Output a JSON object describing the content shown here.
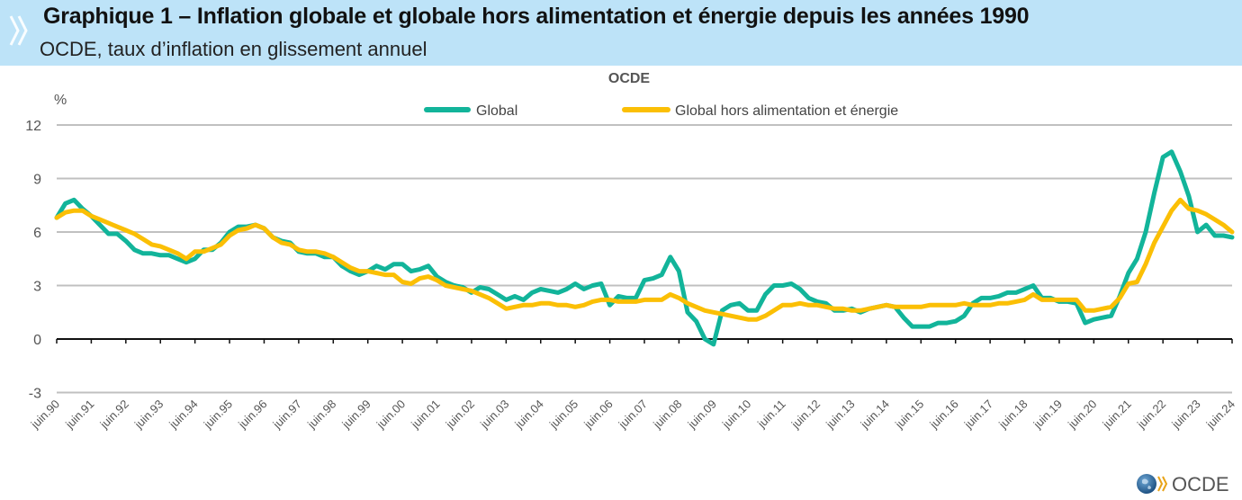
{
  "header": {
    "title": "Graphique 1 – Inflation globale et globale hors alimentation et énergie depuis les années 1990",
    "subtitle": "OCDE, taux d’inflation en glissement annuel",
    "icon": "double-chevron-icon"
  },
  "logo": {
    "text": "OCDE",
    "icon": "globe-icon"
  },
  "chart_data": {
    "type": "line",
    "title": "OCDE",
    "ylabel": "%",
    "xlabel": "",
    "ylim": [
      -3,
      12
    ],
    "yticks": [
      -3,
      0,
      3,
      6,
      9,
      12
    ],
    "grid": true,
    "legend": "top-center",
    "x_start": 1990.5,
    "x_end": 2024.5,
    "x_tick_labels": [
      "juin.90",
      "juin.91",
      "juin.92",
      "juin.93",
      "juin.94",
      "juin.95",
      "juin.96",
      "juin.97",
      "juin.98",
      "juin.99",
      "juin.00",
      "juin.01",
      "juin.02",
      "juin.03",
      "juin.04",
      "juin.05",
      "juin.06",
      "juin.07",
      "juin.08",
      "juin.09",
      "juin.10",
      "juin.11",
      "juin.12",
      "juin.13",
      "juin.14",
      "juin.15",
      "juin.16",
      "juin.17",
      "juin.18",
      "juin.19",
      "juin.20",
      "juin.21",
      "juin.22",
      "juin.23",
      "juin.24"
    ],
    "x": [
      1990.5,
      1990.75,
      1991.0,
      1991.25,
      1991.5,
      1991.75,
      1992.0,
      1992.25,
      1992.5,
      1992.75,
      1993.0,
      1993.25,
      1993.5,
      1993.75,
      1994.0,
      1994.25,
      1994.5,
      1994.75,
      1995.0,
      1995.25,
      1995.5,
      1995.75,
      1996.0,
      1996.25,
      1996.5,
      1996.75,
      1997.0,
      1997.25,
      1997.5,
      1997.75,
      1998.0,
      1998.25,
      1998.5,
      1998.75,
      1999.0,
      1999.25,
      1999.5,
      1999.75,
      2000.0,
      2000.25,
      2000.5,
      2000.75,
      2001.0,
      2001.25,
      2001.5,
      2001.75,
      2002.0,
      2002.25,
      2002.5,
      2002.75,
      2003.0,
      2003.25,
      2003.5,
      2003.75,
      2004.0,
      2004.25,
      2004.5,
      2004.75,
      2005.0,
      2005.25,
      2005.5,
      2005.75,
      2006.0,
      2006.25,
      2006.5,
      2006.75,
      2007.0,
      2007.25,
      2007.5,
      2007.75,
      2008.0,
      2008.25,
      2008.5,
      2008.75,
      2009.0,
      2009.25,
      2009.5,
      2009.75,
      2010.0,
      2010.25,
      2010.5,
      2010.75,
      2011.0,
      2011.25,
      2011.5,
      2011.75,
      2012.0,
      2012.25,
      2012.5,
      2012.75,
      2013.0,
      2013.25,
      2013.5,
      2013.75,
      2014.0,
      2014.25,
      2014.5,
      2014.75,
      2015.0,
      2015.25,
      2015.5,
      2015.75,
      2016.0,
      2016.25,
      2016.5,
      2016.75,
      2017.0,
      2017.25,
      2017.5,
      2017.75,
      2018.0,
      2018.25,
      2018.5,
      2018.75,
      2019.0,
      2019.25,
      2019.5,
      2019.75,
      2020.0,
      2020.25,
      2020.5,
      2020.75,
      2021.0,
      2021.25,
      2021.5,
      2021.75,
      2022.0,
      2022.25,
      2022.5,
      2022.75,
      2023.0,
      2023.25,
      2023.5,
      2023.75,
      2024.0,
      2024.25,
      2024.5
    ],
    "series": [
      {
        "name": "Global",
        "color": "#12b49a",
        "values": [
          6.8,
          7.6,
          7.8,
          7.3,
          6.9,
          6.4,
          5.9,
          5.9,
          5.5,
          5.0,
          4.8,
          4.8,
          4.7,
          4.7,
          4.5,
          4.3,
          4.5,
          5.0,
          5.0,
          5.4,
          6.0,
          6.3,
          6.3,
          6.4,
          6.2,
          5.7,
          5.5,
          5.4,
          4.9,
          4.8,
          4.8,
          4.6,
          4.6,
          4.1,
          3.8,
          3.6,
          3.8,
          4.1,
          3.9,
          4.2,
          4.2,
          3.8,
          3.9,
          4.1,
          3.5,
          3.2,
          3.0,
          2.9,
          2.6,
          2.9,
          2.8,
          2.5,
          2.2,
          2.4,
          2.2,
          2.6,
          2.8,
          2.7,
          2.6,
          2.8,
          3.1,
          2.8,
          3.0,
          3.1,
          1.9,
          2.4,
          2.3,
          2.3,
          3.3,
          3.4,
          3.6,
          4.6,
          3.8,
          1.5,
          1.0,
          0.0,
          -0.3,
          1.6,
          1.9,
          2.0,
          1.6,
          1.6,
          2.5,
          3.0,
          3.0,
          3.1,
          2.8,
          2.3,
          2.1,
          2.0,
          1.6,
          1.6,
          1.7,
          1.5,
          1.7,
          1.8,
          1.9,
          1.8,
          1.2,
          0.7,
          0.7,
          0.7,
          0.9,
          0.9,
          1.0,
          1.3,
          2.0,
          2.3,
          2.3,
          2.4,
          2.6,
          2.6,
          2.8,
          3.0,
          2.3,
          2.3,
          2.1,
          2.1,
          2.0,
          0.9,
          1.1,
          1.2,
          1.3,
          2.4,
          3.7,
          4.5,
          6.0,
          8.2,
          10.2,
          10.5,
          9.4,
          8.0,
          6.0,
          6.4,
          5.8,
          5.8,
          5.7
        ]
      },
      {
        "name": "Global hors alimentation et énergie",
        "color": "#fbbf05",
        "values": [
          6.8,
          7.1,
          7.2,
          7.2,
          6.9,
          6.7,
          6.5,
          6.3,
          6.1,
          5.9,
          5.6,
          5.3,
          5.2,
          5.0,
          4.8,
          4.5,
          4.9,
          4.9,
          5.1,
          5.3,
          5.8,
          6.1,
          6.2,
          6.4,
          6.2,
          5.7,
          5.4,
          5.3,
          5.0,
          4.9,
          4.9,
          4.8,
          4.6,
          4.3,
          4.0,
          3.8,
          3.8,
          3.7,
          3.6,
          3.6,
          3.2,
          3.1,
          3.4,
          3.5,
          3.3,
          3.0,
          2.9,
          2.8,
          2.7,
          2.5,
          2.3,
          2.0,
          1.7,
          1.8,
          1.9,
          1.9,
          2.0,
          2.0,
          1.9,
          1.9,
          1.8,
          1.9,
          2.1,
          2.2,
          2.2,
          2.1,
          2.1,
          2.1,
          2.2,
          2.2,
          2.2,
          2.5,
          2.3,
          2.0,
          1.8,
          1.6,
          1.5,
          1.4,
          1.3,
          1.2,
          1.1,
          1.1,
          1.3,
          1.6,
          1.9,
          1.9,
          2.0,
          1.9,
          1.9,
          1.8,
          1.7,
          1.7,
          1.6,
          1.6,
          1.7,
          1.8,
          1.9,
          1.8,
          1.8,
          1.8,
          1.8,
          1.9,
          1.9,
          1.9,
          1.9,
          2.0,
          1.9,
          1.9,
          1.9,
          2.0,
          2.0,
          2.1,
          2.2,
          2.5,
          2.2,
          2.2,
          2.2,
          2.2,
          2.2,
          1.6,
          1.6,
          1.7,
          1.8,
          2.3,
          3.1,
          3.2,
          4.2,
          5.4,
          6.3,
          7.2,
          7.8,
          7.3,
          7.2,
          7.0,
          6.7,
          6.4,
          6.0
        ]
      }
    ]
  }
}
